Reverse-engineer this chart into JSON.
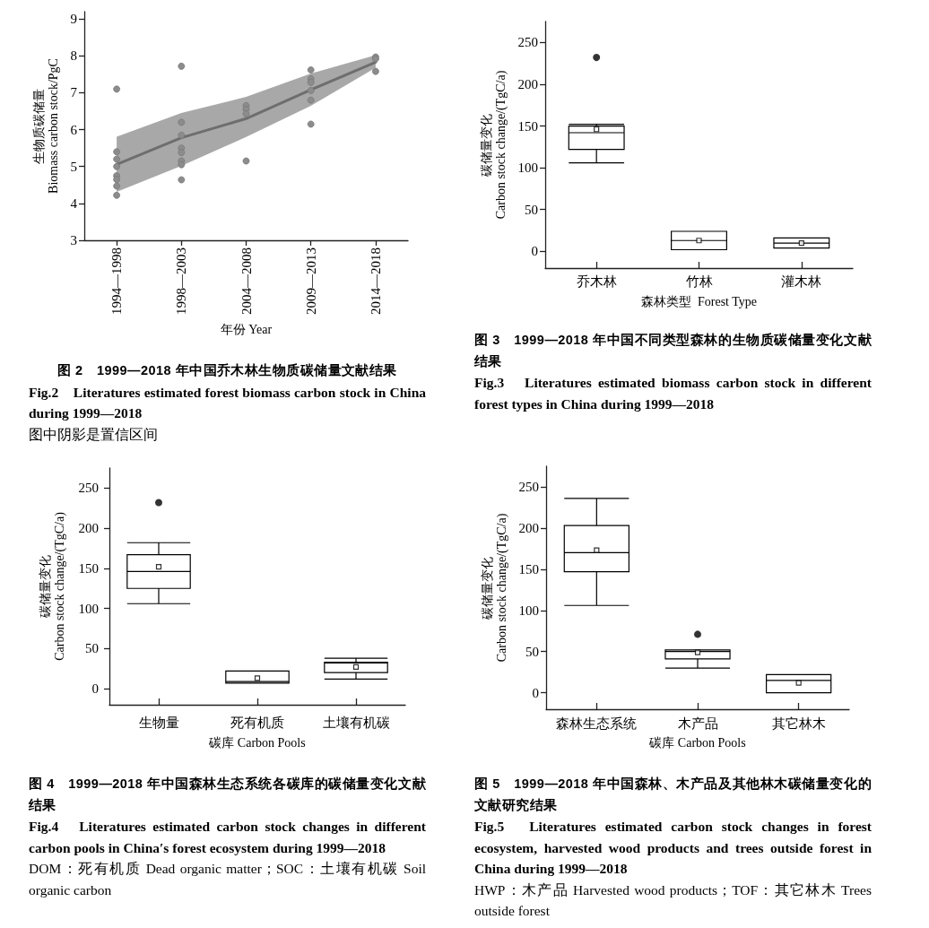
{
  "chart_data": [
    {
      "type": "line",
      "title": "图 2　1999—2018 年中国乔木林生物质碳储量文献结果",
      "subtitle": "Fig.2　Literatures estimated forest biomass carbon stock in China during 1999—2018",
      "annotations": [
        "图中阴影是置信区间"
      ],
      "xlabel": "年份 Year",
      "ylabel": "生物质碳储量\nBiomass carbon stock/PgC",
      "categories": [
        "1994—1998",
        "1998—2003",
        "2004—2008",
        "2009—2013",
        "2014—2018"
      ],
      "ylim": [
        3,
        9.2
      ],
      "yticks": [
        3,
        4,
        5,
        6,
        7,
        8,
        9
      ],
      "series": [
        {
          "type": "scatter",
          "color": "#8c8c8c",
          "marker": "circle",
          "x": [
            "1994—1998",
            "1994—1998",
            "1994—1998",
            "1994—1998",
            "1994—1998",
            "1994—1998",
            "1994—1998",
            "1994—1998",
            "1998—2003",
            "1998—2003",
            "1998—2003",
            "1998—2003",
            "1998—2003",
            "1998—2003",
            "1998—2003",
            "1998—2003",
            "2004—2008",
            "2004—2008",
            "2004—2008",
            "2004—2008",
            "2009—2013",
            "2009—2013",
            "2009—2013",
            "2009—2013",
            "2009—2013",
            "2009—2013",
            "2014—2018",
            "2014—2018",
            "2014—2018"
          ],
          "values": [
            7.1,
            5.4,
            5.2,
            5.0,
            4.75,
            4.65,
            4.47,
            4.22,
            7.72,
            6.2,
            5.85,
            5.5,
            5.38,
            5.15,
            5.05,
            4.64,
            6.65,
            6.55,
            6.43,
            5.15,
            7.62,
            7.38,
            7.28,
            7.06,
            6.8,
            6.15,
            7.97,
            7.92,
            7.58
          ]
        },
        {
          "color": "#6e6e6e",
          "marker": "none",
          "values": [
            5.06,
            5.78,
            6.3,
            7.08,
            7.83
          ],
          "lower": [
            4.31,
            5.02,
            5.8,
            6.65,
            7.68
          ],
          "upper": [
            5.81,
            6.45,
            6.89,
            7.52,
            8.02
          ]
        }
      ]
    },
    {
      "type": "box",
      "title": "图 3　1999—2018 年中国不同类型森林的生物质碳储量变化文献结果",
      "subtitle": "Fig.3　Literatures estimated biomass carbon stock in different forest types in China during 1999—2018",
      "xlabel": "森林类型  Forest Type",
      "ylabel": "碳储量变化\nCarbon stock change/(TgC/a)",
      "categories": [
        "乔木林",
        "竹林",
        "灌木林"
      ],
      "ylim": [
        -20,
        275
      ],
      "yticks": [
        0,
        50,
        100,
        150,
        200,
        250
      ],
      "series": [
        {
          "color": "#000000",
          "boxes": [
            {
              "low": 106,
              "q1": 122,
              "median": 142,
              "q3": 150,
              "high": 152,
              "mean": 146,
              "outliers": [
                232
              ]
            },
            {
              "low": 2,
              "q1": 2,
              "median": 13,
              "q3": 24,
              "high": 24,
              "mean": 13
            },
            {
              "low": 4,
              "q1": 4,
              "median": 10,
              "q3": 16,
              "high": 16,
              "mean": 10
            }
          ]
        }
      ]
    },
    {
      "type": "box",
      "title": "图 4　1999—2018 年中国森林生态系统各碳库的碳储量变化文献结果",
      "subtitle": "Fig.4　Literatures estimated carbon stock changes in different carbon pools in China′s forest ecosystem during 1999—2018",
      "annotations": [
        "DOM：死有机质 Dead organic matter；SOC：土壤有机碳 Soil organic carbon"
      ],
      "xlabel": "碳库 Carbon Pools",
      "ylabel": "碳储量变化\nCarbon stock change/(TgC/a)",
      "categories": [
        "生物量",
        "死有机质",
        "土壤有机碳"
      ],
      "ylim": [
        -20,
        275
      ],
      "yticks": [
        0,
        50,
        100,
        150,
        200,
        250
      ],
      "series": [
        {
          "color": "#000000",
          "boxes": [
            {
              "low": 106,
              "q1": 125,
              "median": 146,
              "q3": 167,
              "high": 182,
              "mean": 152,
              "outliers": [
                232
              ]
            },
            {
              "low": 7,
              "q1": 7,
              "median": 9,
              "q3": 22,
              "high": 22,
              "mean": 13
            },
            {
              "low": 12,
              "q1": 20,
              "median": 32,
              "q3": 33,
              "high": 38,
              "mean": 27
            }
          ]
        }
      ]
    },
    {
      "type": "box",
      "title": "图 5　1999—2018 年中国森林、木产品及其他林木碳储量变化的文献研究结果",
      "subtitle": "Fig.5　Literatures estimated carbon stock changes in forest ecosystem, harvested wood products and trees outside forest in China during 1999—2018",
      "annotations": [
        "HWP：木产品 Harvested wood products；TOF：其它林木 Trees outside forest"
      ],
      "xlabel": "碳库 Carbon Pools",
      "ylabel": "碳储量变化\nCarbon stock change/(TgC/a)",
      "categories": [
        "森林生态系统",
        "木产品",
        "其它林木"
      ],
      "ylim": [
        -20,
        275
      ],
      "yticks": [
        0,
        50,
        100,
        150,
        200,
        250
      ],
      "series": [
        {
          "color": "#000000",
          "boxes": [
            {
              "low": 106,
              "q1": 147,
              "median": 170,
              "q3": 203,
              "high": 236,
              "mean": 173
            },
            {
              "low": 30,
              "q1": 41,
              "median": 50,
              "q3": 52,
              "high": 52,
              "mean": 49,
              "outliers": [
                71
              ]
            },
            {
              "low": 0,
              "q1": 0,
              "median": 15,
              "q3": 22,
              "high": 22,
              "mean": 12
            }
          ]
        }
      ]
    }
  ]
}
